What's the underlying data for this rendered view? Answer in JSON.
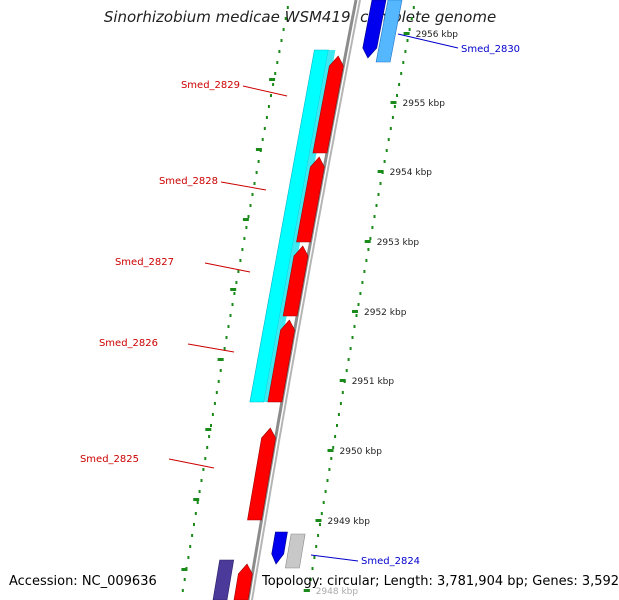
{
  "title": "Sinorhizobium medicae WSM419, complete genome",
  "footer": {
    "accession": "Accession: NC_009636",
    "summary": "Topology: circular; Length: 3,781,904 bp; Genes: 3,592"
  },
  "colors": {
    "forward_cds": "#ff0000",
    "reverse_cds": "#0000ee",
    "gc_track": "#00ffff",
    "grey_feature": "#c8c8c8",
    "ticks": "#1a8a1a",
    "backbone": "#8c8c8c",
    "label_forward": "#cc0000",
    "label_reverse": "#0000cc"
  },
  "ruler": {
    "labels": [
      {
        "kbp": 2956,
        "text": "2956 kbp"
      },
      {
        "kbp": 2955,
        "text": "2955 kbp"
      },
      {
        "kbp": 2954,
        "text": "2954 kbp"
      },
      {
        "kbp": 2953,
        "text": "2953 kbp"
      },
      {
        "kbp": 2952,
        "text": "2952 kbp"
      },
      {
        "kbp": 2951,
        "text": "2951 kbp"
      },
      {
        "kbp": 2950,
        "text": "2950 kbp"
      },
      {
        "kbp": 2949,
        "text": "2949 kbp"
      },
      {
        "kbp": 2948,
        "text": "2948 kbp"
      }
    ]
  },
  "genes": [
    {
      "id": "smed-2830",
      "label": "Smed_2830",
      "strand": "reverse"
    },
    {
      "id": "smed-2829",
      "label": "Smed_2829",
      "strand": "forward"
    },
    {
      "id": "smed-2828",
      "label": "Smed_2828",
      "strand": "forward"
    },
    {
      "id": "smed-2827",
      "label": "Smed_2827",
      "strand": "forward"
    },
    {
      "id": "smed-2826",
      "label": "Smed_2826",
      "strand": "forward"
    },
    {
      "id": "smed-2825",
      "label": "Smed_2825",
      "strand": "forward"
    },
    {
      "id": "smed-2824",
      "label": "Smed_2824",
      "strand": "reverse"
    }
  ]
}
